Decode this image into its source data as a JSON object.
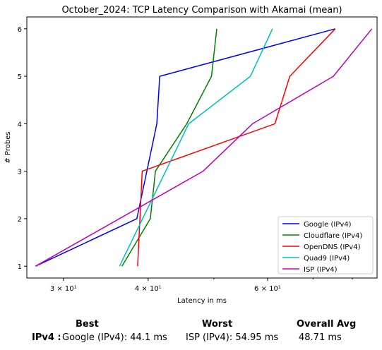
{
  "chart_data": {
    "type": "line",
    "title": "October_2024: TCP Latency Comparison with Akamai (mean)",
    "xlabel": "Latency in ms",
    "ylabel": "# Probes",
    "xscale": "log",
    "xlim": [
      26.5,
      87
    ],
    "ylim": [
      0.75,
      6.25
    ],
    "x_ticks": [
      {
        "value": 30,
        "label": "3 × 10¹"
      },
      {
        "value": 40,
        "label": "4 × 10¹"
      },
      {
        "value": 60,
        "label": "6 × 10¹"
      }
    ],
    "y_ticks": [
      1,
      2,
      3,
      4,
      5,
      6
    ],
    "grid": false,
    "legend_position": "bottom-right",
    "series": [
      {
        "name": "Google (IPv4)",
        "color": "#0000ff",
        "points": [
          [
            27.3,
            1
          ],
          [
            38.5,
            2
          ],
          [
            41.2,
            4
          ],
          [
            41.6,
            5
          ],
          [
            75.5,
            6
          ]
        ]
      },
      {
        "name": "Cloudflare (IPv4)",
        "color": "#008000",
        "points": [
          [
            36.6,
            1
          ],
          [
            40.3,
            2
          ],
          [
            41.0,
            3
          ],
          [
            45.6,
            4
          ],
          [
            49.6,
            5
          ],
          [
            50.5,
            6
          ]
        ]
      },
      {
        "name": "OpenDNS (IPv4)",
        "color": "#ff0000",
        "points": [
          [
            38.6,
            1
          ],
          [
            39.2,
            3
          ],
          [
            61.5,
            4
          ],
          [
            64.7,
            5
          ],
          [
            75.5,
            6
          ]
        ]
      },
      {
        "name": "Quad9 (IPv4)",
        "color": "#00bfbf",
        "points": [
          [
            36.3,
            1
          ],
          [
            45.9,
            4
          ],
          [
            56.6,
            5
          ],
          [
            61.0,
            6
          ]
        ]
      },
      {
        "name": "ISP (IPv4)",
        "color": "#bf00bf",
        "points": [
          [
            27.3,
            1
          ],
          [
            48.2,
            3
          ],
          [
            57.0,
            4
          ],
          [
            75.0,
            5
          ],
          [
            85.5,
            6
          ]
        ]
      }
    ]
  },
  "summary": {
    "best_header": "Best",
    "worst_header": "Worst",
    "avg_header": "Overall Avg",
    "row_label": "IPv4 :",
    "best_value": "Google (IPv4): 44.1 ms",
    "worst_value": "ISP (IPv4): 54.95 ms",
    "avg_value": "48.71 ms"
  }
}
